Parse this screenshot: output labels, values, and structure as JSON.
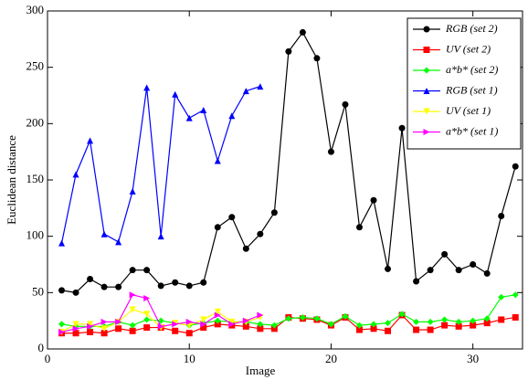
{
  "chart_data": {
    "type": "line",
    "x_label": "Image",
    "y_label": "Euclidean distance",
    "xlim": [
      0,
      33.5
    ],
    "xticks": [
      0,
      10,
      20,
      30
    ],
    "ylim": [
      0,
      300
    ],
    "yticks": [
      0,
      50,
      100,
      150,
      200,
      250,
      300
    ],
    "legend": "upper right",
    "series": [
      {
        "name": "RGB (set 2)",
        "color": "#000000",
        "marker": "circle",
        "x": [
          1,
          2,
          3,
          4,
          5,
          6,
          7,
          8,
          9,
          10,
          11,
          12,
          13,
          14,
          15,
          16,
          17,
          18,
          19,
          20,
          21,
          22,
          23,
          24,
          25,
          26,
          27,
          28,
          29,
          30,
          31,
          32,
          33
        ],
        "values": [
          52,
          50,
          62,
          55,
          55,
          70,
          70,
          56,
          59,
          56,
          59,
          108,
          117,
          89,
          102,
          121,
          264,
          281,
          258,
          175,
          217,
          108,
          132,
          71,
          196,
          60,
          70,
          84,
          70,
          75,
          67,
          118,
          162
        ]
      },
      {
        "name": "UV (set 2)",
        "color": "#ff0000",
        "marker": "square",
        "x": [
          1,
          2,
          3,
          4,
          5,
          6,
          7,
          8,
          9,
          10,
          11,
          12,
          13,
          14,
          15,
          16,
          17,
          18,
          19,
          20,
          21,
          22,
          23,
          24,
          25,
          26,
          27,
          28,
          29,
          30,
          31,
          32,
          33
        ],
        "values": [
          14,
          14,
          15,
          14,
          18,
          16,
          19,
          19,
          16,
          14,
          19,
          22,
          21,
          20,
          18,
          18,
          28,
          27,
          26,
          21,
          28,
          17,
          18,
          16,
          30,
          17,
          17,
          21,
          20,
          21,
          23,
          26,
          28
        ]
      },
      {
        "name": "a*b* (set 2)",
        "color": "#00ff00",
        "marker": "diamond",
        "x": [
          1,
          2,
          3,
          4,
          5,
          6,
          7,
          8,
          9,
          10,
          11,
          12,
          13,
          14,
          15,
          16,
          17,
          18,
          19,
          20,
          21,
          22,
          23,
          24,
          25,
          26,
          27,
          28,
          29,
          30,
          31,
          32,
          33
        ],
        "values": [
          22,
          20,
          20,
          20,
          24,
          21,
          26,
          25,
          23,
          21,
          23,
          25,
          24,
          24,
          22,
          21,
          27,
          28,
          27,
          22,
          29,
          21,
          22,
          23,
          31,
          24,
          24,
          26,
          24,
          25,
          27,
          46,
          48
        ]
      },
      {
        "name": "RGB (set 1)",
        "color": "#0000ff",
        "marker": "triangle-up",
        "x": [
          1,
          2,
          3,
          4,
          5,
          6,
          7,
          8,
          9,
          10,
          11,
          12,
          13,
          14,
          15
        ],
        "values": [
          94,
          155,
          185,
          102,
          95,
          140,
          232,
          100,
          226,
          205,
          212,
          167,
          207,
          229,
          233
        ]
      },
      {
        "name": "UV (set 1)",
        "color": "#ffff00",
        "marker": "triangle-down",
        "x": [
          1,
          2,
          3,
          4,
          5,
          6,
          7,
          8,
          9,
          10,
          11,
          12,
          13,
          14,
          15
        ],
        "values": [
          15,
          22,
          22,
          18,
          24,
          35,
          31,
          19,
          23,
          21,
          26,
          33,
          24,
          24,
          28
        ]
      },
      {
        "name": "a*b* (set 1)",
        "color": "#ff00ff",
        "marker": "triangle-right",
        "x": [
          1,
          2,
          3,
          4,
          5,
          6,
          7,
          8,
          9,
          10,
          11,
          12,
          13,
          14,
          15
        ],
        "values": [
          15,
          18,
          20,
          24,
          24,
          48,
          45,
          20,
          22,
          24,
          22,
          30,
          22,
          25,
          30
        ]
      }
    ]
  }
}
